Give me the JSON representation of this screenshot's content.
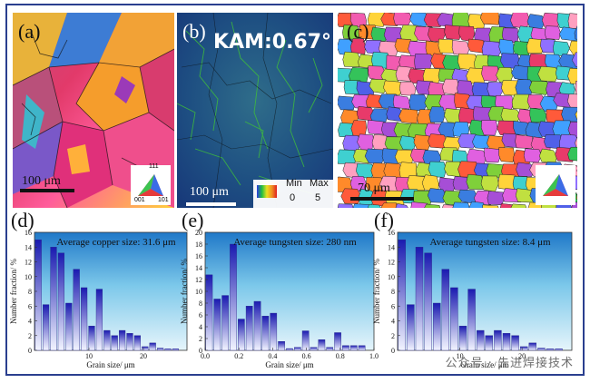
{
  "panels": {
    "a": {
      "label": "(a)",
      "scale": "100 μm"
    },
    "b": {
      "label": "(b)",
      "kam": "KAM:0.67°",
      "scale": "100 μm",
      "legend_min": "Min",
      "legend_max": "Max",
      "legend_min_val": "0",
      "legend_max_val": "5"
    },
    "c": {
      "label": "(c)",
      "scale": "70 μm"
    },
    "ipf": {
      "top": "111",
      "left": "001",
      "right": "101"
    }
  },
  "chart_data": [
    {
      "panel": "(d)",
      "type": "bar",
      "title": "Average copper size: 31.6 μm",
      "xlabel": "Grain size/ μm",
      "ylabel": "Number fraction/ %",
      "xlim": [
        0,
        28
      ],
      "ylim": [
        0,
        16
      ],
      "yticks": [
        0,
        2,
        4,
        6,
        8,
        10,
        12,
        14,
        16
      ],
      "xticks": [
        "10",
        "20"
      ],
      "xtick_values": [
        10,
        20
      ],
      "bin_width": 1.4,
      "bin_start": 0,
      "values": [
        15.0,
        6.2,
        14.0,
        13.2,
        6.4,
        11.0,
        8.5,
        3.3,
        8.3,
        2.7,
        2.0,
        2.7,
        2.3,
        2.0,
        0.5,
        1.0,
        0.3,
        0.2,
        0.2
      ]
    },
    {
      "panel": "(e)",
      "type": "bar",
      "title": "Average tungsten size: 280 nm",
      "xlabel": "Grain size/ μm",
      "ylabel": "Number fraction/ %",
      "xlim": [
        0,
        1.0
      ],
      "ylim": [
        0,
        20
      ],
      "yticks": [
        0,
        2,
        4,
        6,
        8,
        10,
        12,
        14,
        16,
        18,
        20
      ],
      "xticks": [
        "0.0",
        "0.2",
        "0.4",
        "0.6",
        "0.8",
        "1.0"
      ],
      "xtick_values": [
        0,
        0.2,
        0.4,
        0.6,
        0.8,
        1.0
      ],
      "bin_width": 0.0476,
      "bin_start": 0,
      "values": [
        12.8,
        8.7,
        9.3,
        18.0,
        5.3,
        7.5,
        8.3,
        5.8,
        6.3,
        1.5,
        0.3,
        0.5,
        3.3,
        0.5,
        1.8,
        0.5,
        3.0,
        0.8,
        0.8,
        0.8
      ]
    },
    {
      "panel": "(f)",
      "type": "bar",
      "title": "Average tungsten size: 8.4 μm",
      "xlabel": "Grain size/ μm",
      "ylabel": "Number fraction/ %",
      "xlim": [
        0,
        28
      ],
      "ylim": [
        0,
        16
      ],
      "yticks": [
        0,
        2,
        4,
        6,
        8,
        10,
        12,
        14,
        16
      ],
      "xticks": [
        "10",
        "20"
      ],
      "xtick_values": [
        10,
        20
      ],
      "bin_width": 1.4,
      "bin_start": 0,
      "values": [
        15.0,
        6.2,
        14.0,
        13.2,
        6.4,
        11.0,
        8.5,
        3.3,
        8.3,
        2.7,
        2.0,
        2.7,
        2.3,
        2.0,
        0.5,
        1.0,
        0.3,
        0.2,
        0.2
      ]
    }
  ],
  "watermark": "公众号 · 先进焊接技术"
}
